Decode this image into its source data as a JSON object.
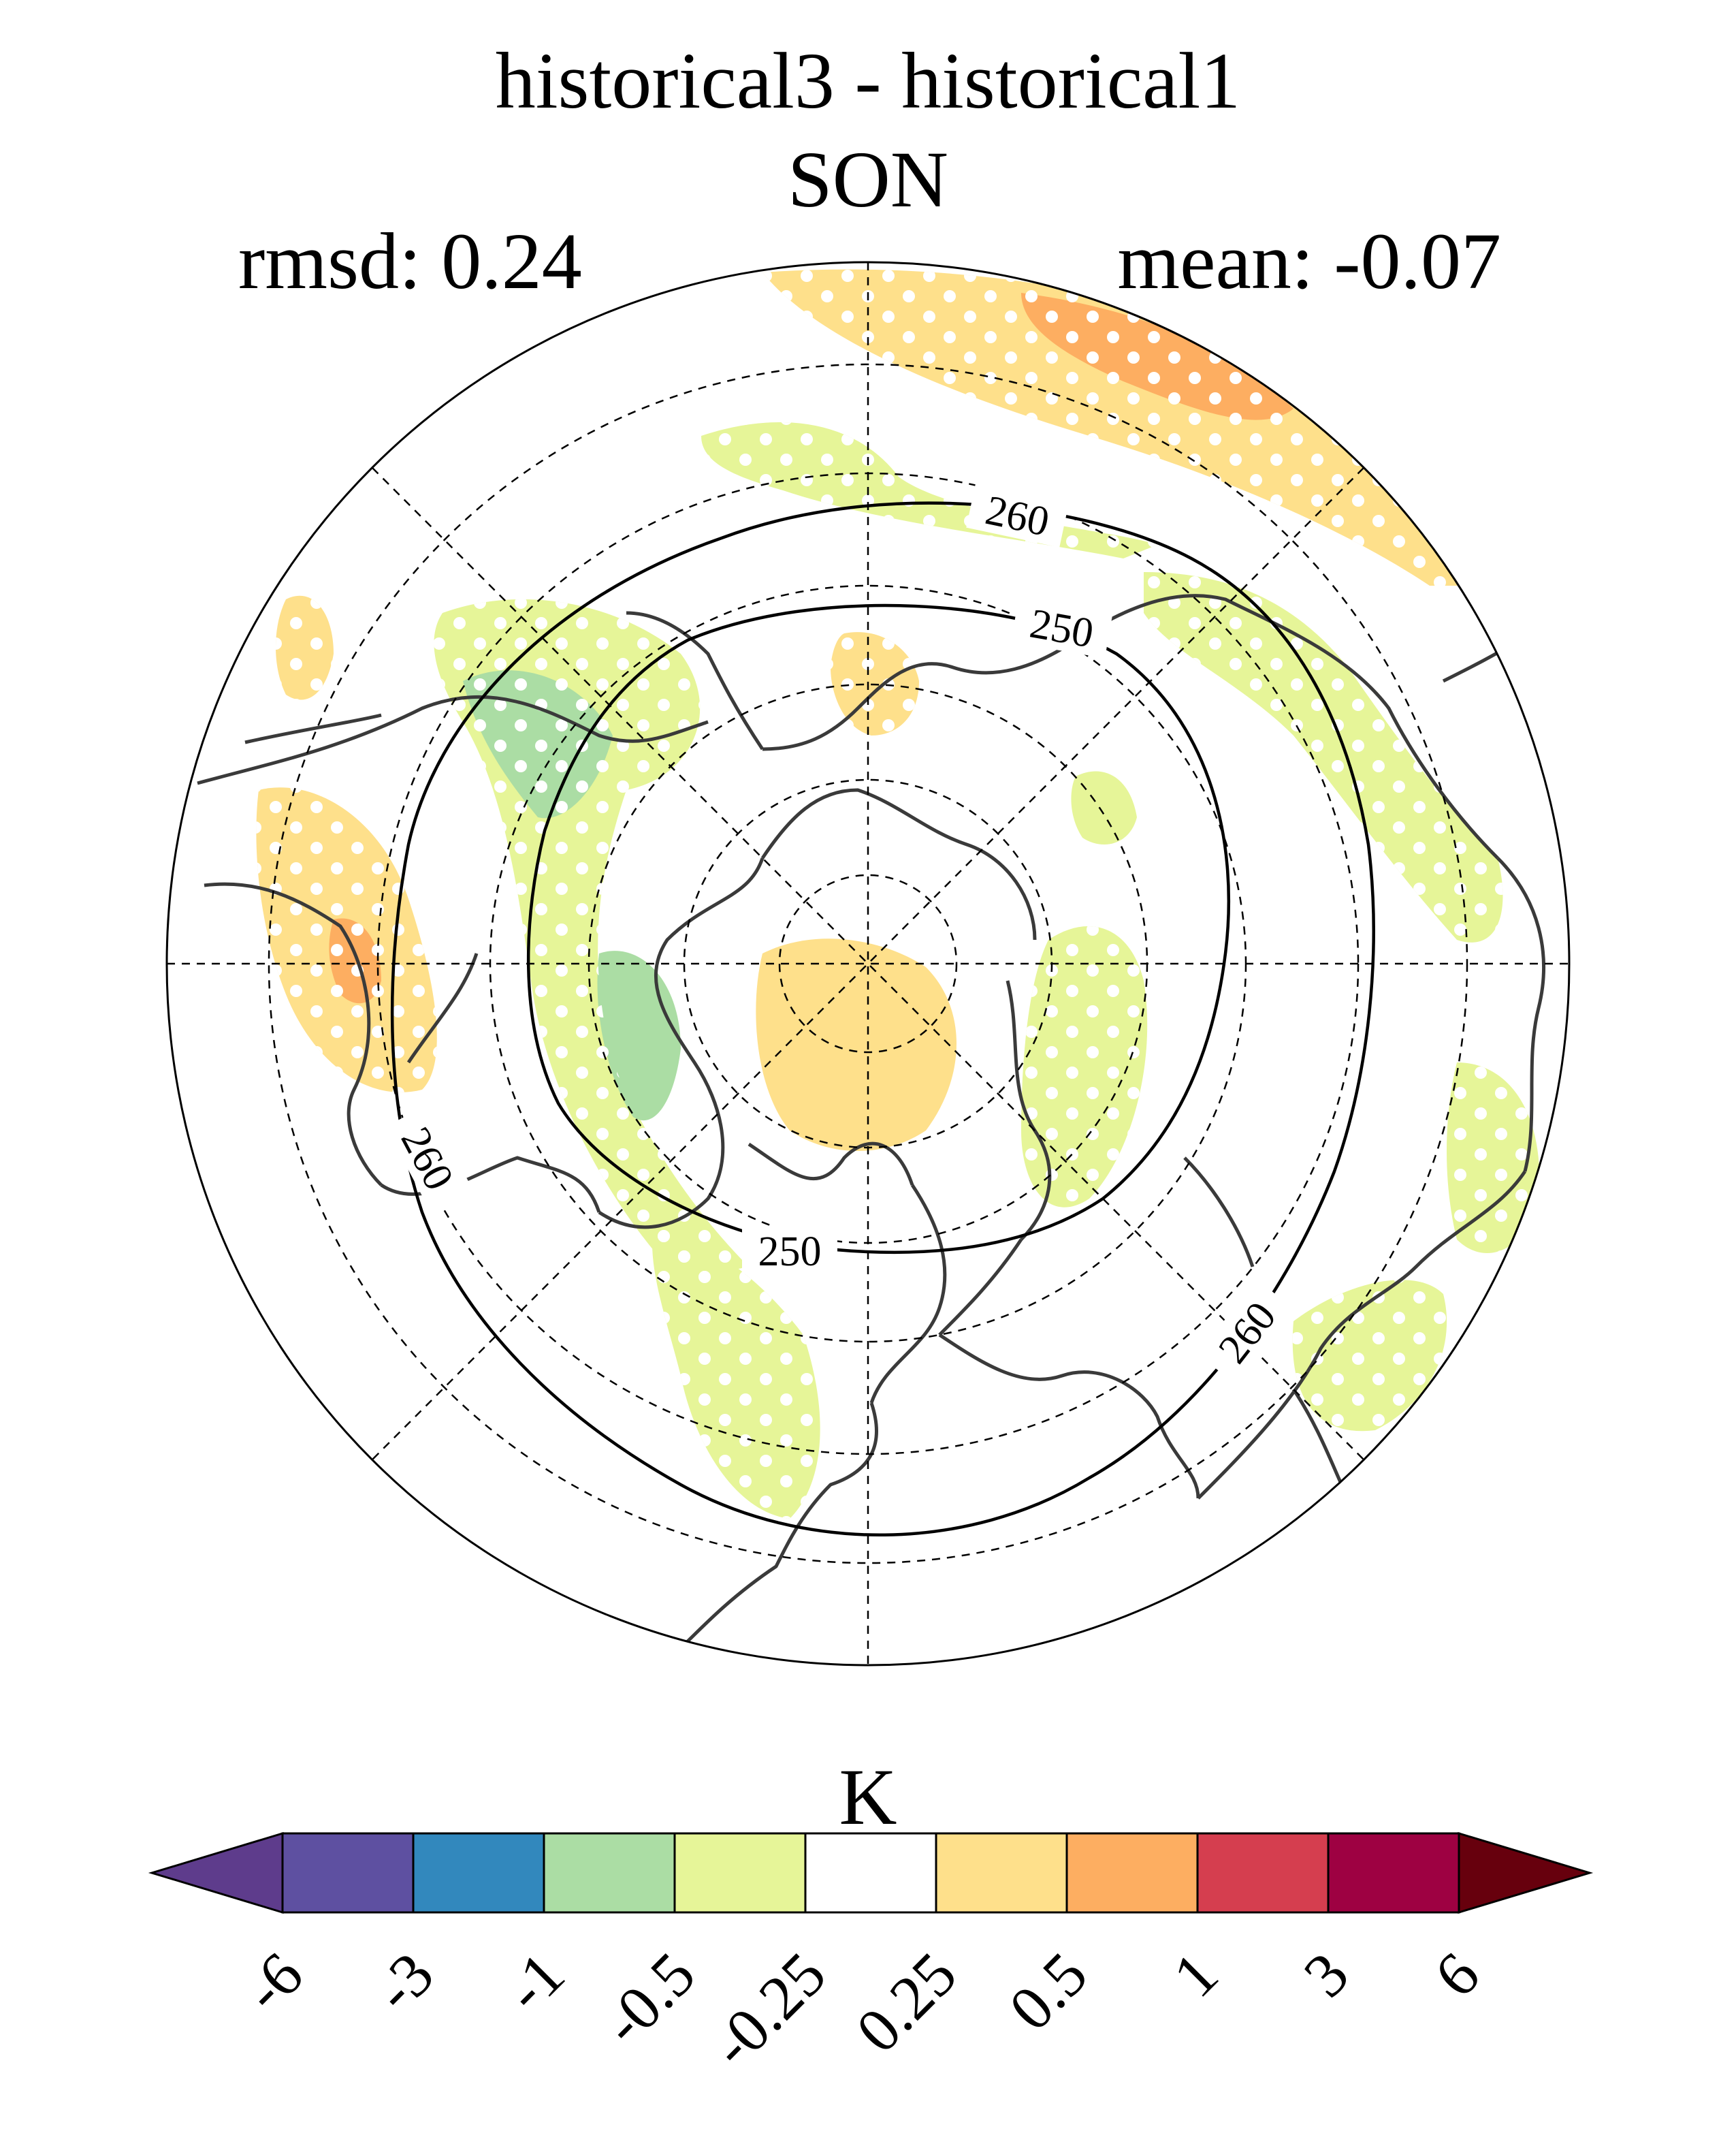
{
  "title": {
    "line1": "historical3 - historical1",
    "line2": "SON"
  },
  "stats": {
    "rmsd_label": "rmsd: 0.24",
    "mean_label": "mean: -0.07"
  },
  "map": {
    "projection": "north-polar-stereographic",
    "contour_labels": [
      "260",
      "250",
      "260",
      "250",
      "260",
      "260"
    ],
    "stippling": "white dots over significant regions"
  },
  "colorbar": {
    "unit": "K",
    "ticks": [
      "-6",
      "-3",
      "-1",
      "-0.5",
      "-0.25",
      "0.25",
      "0.5",
      "1",
      "3",
      "6"
    ],
    "colors": [
      "#5e3c8c",
      "#5e50a1",
      "#3288bd",
      "#abdda4",
      "#e6f598",
      "#ffffff",
      "#fee08b",
      "#fdae61",
      "#d53e4f",
      "#9e0142",
      "#67000d"
    ]
  }
}
